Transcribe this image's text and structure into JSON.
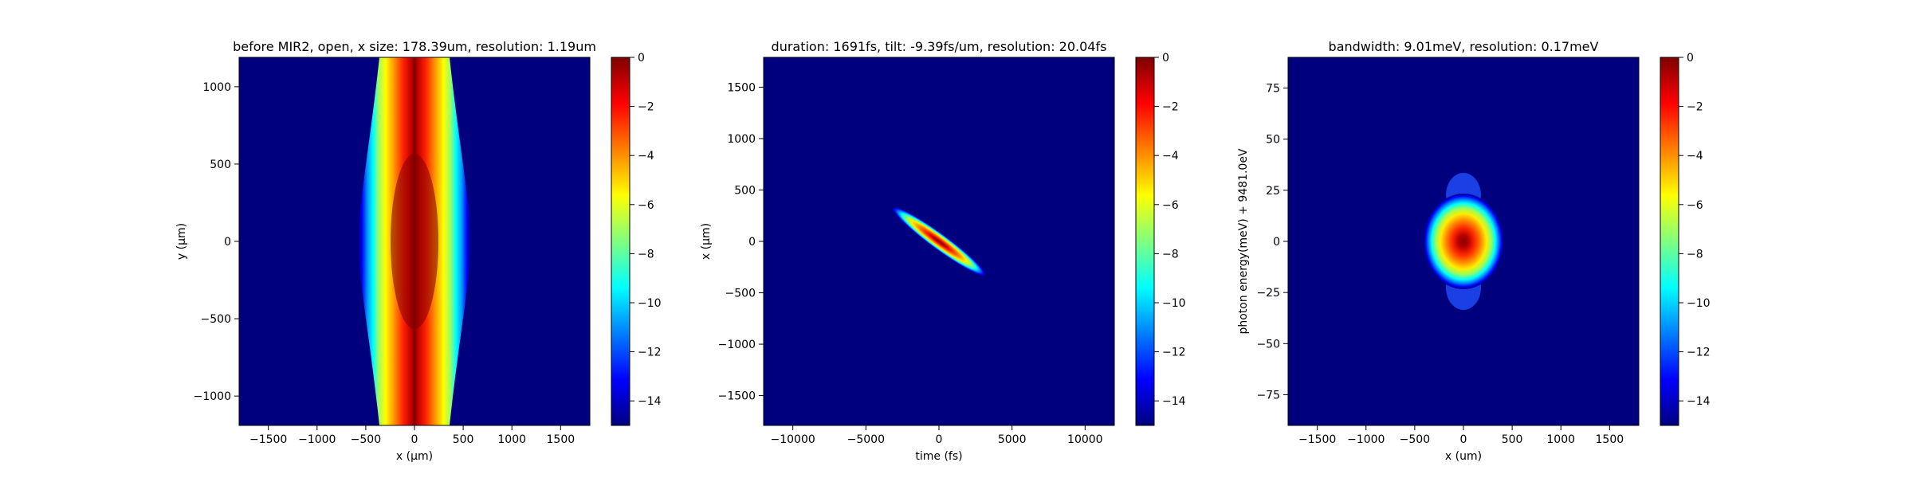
{
  "chart_data": [
    {
      "type": "heatmap",
      "title": "before MIR2, open, x size: 178.39um, resolution: 1.19um",
      "xlabel": "x (μm)",
      "ylabel": "y (μm)",
      "xlim": [
        -1800,
        1800
      ],
      "ylim": [
        -1190,
        1190
      ],
      "xticks": [
        -1500,
        -1000,
        -500,
        0,
        500,
        1000,
        1500
      ],
      "yticks": [
        -1000,
        -500,
        0,
        500,
        1000
      ],
      "colorbar": {
        "range": [
          -15,
          0
        ],
        "ticks": [
          0,
          -2,
          -4,
          -6,
          -8,
          -10,
          -12,
          -14
        ],
        "colormap": "jet"
      },
      "pattern": "vertical band centered at x=0, widest near y=0",
      "band_half_width_um": {
        "y_-1190": 280,
        "y_0": 360,
        "y_1190": 280
      },
      "peak_value": 0
    },
    {
      "type": "heatmap",
      "title": "duration: 1691fs, tilt: -9.39fs/um, resolution: 20.04fs",
      "xlabel": "time (fs)",
      "ylabel": "x (μm)",
      "xlim": [
        -12000,
        12000
      ],
      "ylim": [
        -1790,
        1790
      ],
      "xticks": [
        -10000,
        -5000,
        0,
        5000,
        10000
      ],
      "yticks": [
        -1500,
        -1000,
        -500,
        0,
        500,
        1000,
        1500
      ],
      "colorbar": {
        "range": [
          -15,
          0
        ],
        "ticks": [
          0,
          -2,
          -4,
          -6,
          -8,
          -10,
          -12,
          -14
        ],
        "colormap": "jet"
      },
      "pattern": "tilted ellipse centered at origin",
      "ellipse_endpoints": [
        [
          -3800,
          380
        ],
        [
          3800,
          -380
        ]
      ],
      "peak_value": 0
    },
    {
      "type": "heatmap",
      "title": "bandwidth: 9.01meV, resolution: 0.17meV",
      "xlabel": "x (um)",
      "ylabel": "photon energy(meV) + 9481.0eV",
      "xlim": [
        -1800,
        1800
      ],
      "ylim": [
        -90,
        90
      ],
      "xticks": [
        -1500,
        -1000,
        -500,
        0,
        500,
        1000,
        1500
      ],
      "yticks": [
        -75,
        -50,
        -25,
        0,
        25,
        50,
        75
      ],
      "colorbar": {
        "range": [
          -15,
          0
        ],
        "ticks": [
          0,
          -2,
          -4,
          -6,
          -8,
          -10,
          -12,
          -14
        ],
        "colormap": "jet"
      },
      "pattern": "elliptical blob centered at origin",
      "blob_half_width_um": 380,
      "blob_half_height_meV": 32,
      "peak_value": 0
    }
  ]
}
